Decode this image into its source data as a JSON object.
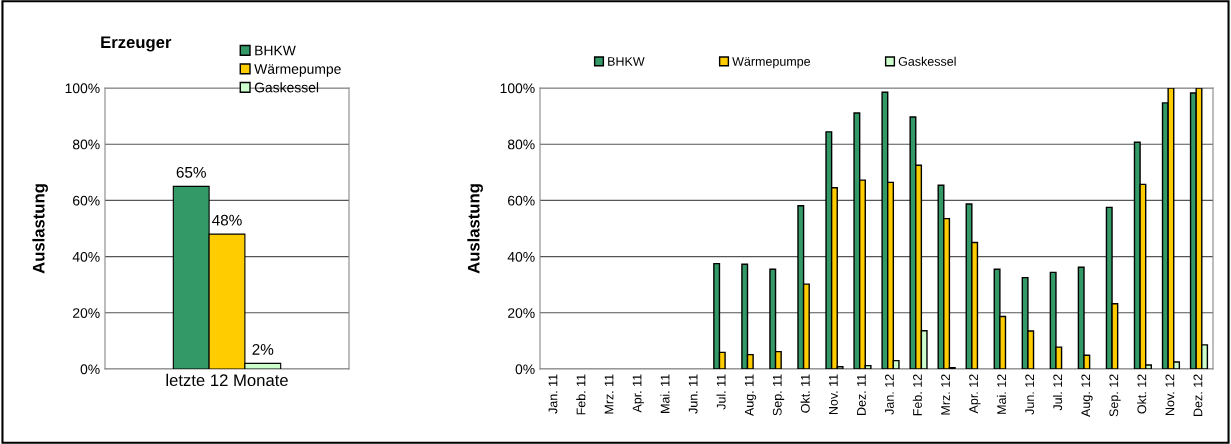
{
  "chart_data": [
    {
      "type": "bar",
      "title": "Erzeuger",
      "ylabel": "Auslastung",
      "categories": [
        "letzte 12 Monate"
      ],
      "series": [
        {
          "name": "BHKW",
          "color": "#339966",
          "values": [
            65
          ],
          "value_labels": [
            "65%"
          ]
        },
        {
          "name": "Wärmepumpe",
          "color": "#ffcc00",
          "values": [
            48
          ],
          "value_labels": [
            "48%"
          ]
        },
        {
          "name": "Gaskessel",
          "color": "#ccffcc",
          "values": [
            2
          ],
          "value_labels": [
            "2%"
          ]
        }
      ],
      "ylim": [
        0,
        100
      ],
      "yticks": [
        {
          "value": 0,
          "label": "0%"
        },
        {
          "value": 20,
          "label": "20%"
        },
        {
          "value": 40,
          "label": "40%"
        },
        {
          "value": 60,
          "label": "60%"
        },
        {
          "value": 80,
          "label": "80%"
        },
        {
          "value": 100,
          "label": "100%"
        }
      ],
      "grid": "y",
      "legend": "top right"
    },
    {
      "type": "bar",
      "ylabel": "Auslastung",
      "categories": [
        "Jan. 11",
        "Feb. 11",
        "Mrz. 11",
        "Apr. 11",
        "Mai. 11",
        "Jun. 11",
        "Jul. 11",
        "Aug. 11",
        "Sep. 11",
        "Okt. 11",
        "Nov. 11",
        "Dez. 11",
        "Jan. 12",
        "Feb. 12",
        "Mrz. 12",
        "Apr. 12",
        "Mai. 12",
        "Jun. 12",
        "Jul. 12",
        "Aug. 12",
        "Sep. 12",
        "Okt. 12",
        "Nov. 12",
        "Dez. 12"
      ],
      "series": [
        {
          "name": "BHKW",
          "color": "#339966",
          "values": [
            null,
            null,
            null,
            null,
            null,
            null,
            37.5,
            37.3,
            35.5,
            58.1,
            84.4,
            91.1,
            98.5,
            89.7,
            65.4,
            58.7,
            35.5,
            32.5,
            34.4,
            36.2,
            57.5,
            80.7,
            94.7,
            98.2
          ]
        },
        {
          "name": "Wärmepumpe",
          "color": "#ffcc00",
          "values": [
            null,
            null,
            null,
            null,
            null,
            null,
            5.9,
            5.1,
            6.2,
            30.2,
            64.5,
            67.2,
            66.4,
            72.5,
            53.5,
            45,
            18.7,
            13.5,
            7.8,
            4.9,
            23.2,
            65.7,
            100,
            100
          ]
        },
        {
          "name": "Gaskessel",
          "color": "#ccffcc",
          "values": [
            null,
            null,
            null,
            null,
            null,
            null,
            0,
            0,
            0,
            0,
            0.8,
            1.2,
            3.0,
            13.6,
            0.5,
            0,
            0,
            0,
            0,
            0,
            0,
            1.4,
            2.5,
            8.6
          ]
        }
      ],
      "ylim": [
        0,
        100
      ],
      "yticks": [
        {
          "value": 0,
          "label": "0%"
        },
        {
          "value": 20,
          "label": "20%"
        },
        {
          "value": 40,
          "label": "40%"
        },
        {
          "value": 60,
          "label": "60%"
        },
        {
          "value": 80,
          "label": "80%"
        },
        {
          "value": 100,
          "label": "100%"
        }
      ],
      "grid": "y",
      "legend": "top"
    }
  ]
}
